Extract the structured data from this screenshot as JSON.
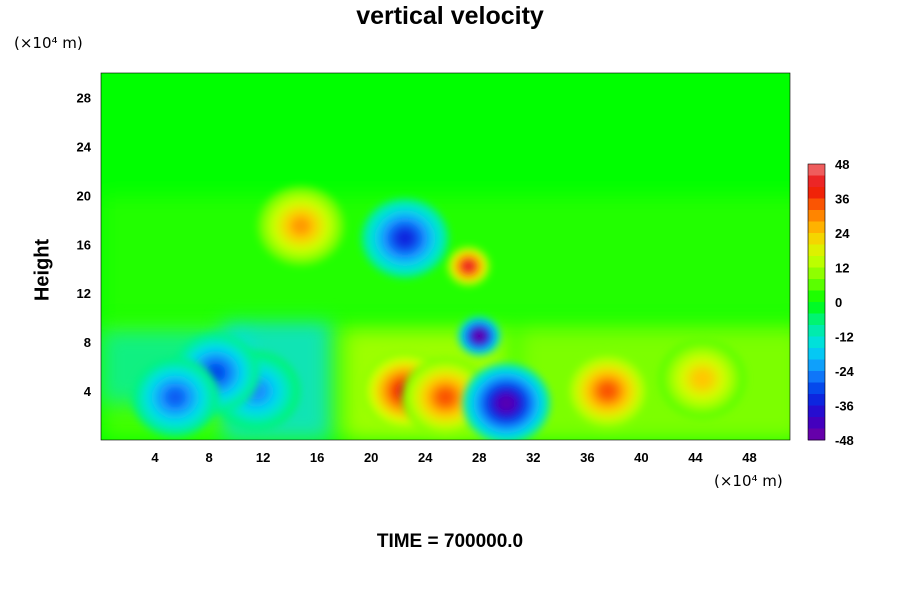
{
  "chart_data": {
    "type": "heatmap",
    "title": "vertical velocity",
    "ylabel": "Height",
    "x_unit": "(×10⁴ m)",
    "y_unit": "(×10⁴ m)",
    "annotation": "TIME = 700000.0",
    "xlim": [
      0,
      51
    ],
    "ylim": [
      0,
      30
    ],
    "x_ticks": [
      4,
      8,
      12,
      16,
      20,
      24,
      28,
      32,
      36,
      40,
      44,
      48
    ],
    "y_ticks": [
      4,
      8,
      12,
      16,
      20,
      24,
      28
    ],
    "colorbar": {
      "min": -48,
      "max": 48,
      "step": 4,
      "tick_labels": [
        48,
        36,
        24,
        12,
        0,
        -12,
        -24,
        -36,
        -48
      ]
    },
    "features": [
      {
        "x": 22.5,
        "y": 4.0,
        "value": 40
      },
      {
        "x": 25.5,
        "y": 3.5,
        "value": 34
      },
      {
        "x": 37.5,
        "y": 4.0,
        "value": 34
      },
      {
        "x": 27.2,
        "y": 14.2,
        "value": 42
      },
      {
        "x": 14.8,
        "y": 17.5,
        "value": 28
      },
      {
        "x": 44.5,
        "y": 5.0,
        "value": 24
      },
      {
        "x": 30.0,
        "y": 3.0,
        "value": -44
      },
      {
        "x": 28.0,
        "y": 8.5,
        "value": -46
      },
      {
        "x": 11.5,
        "y": 4.0,
        "value": -24
      },
      {
        "x": 8.5,
        "y": 5.5,
        "value": -30
      },
      {
        "x": 5.5,
        "y": 3.5,
        "value": -28
      },
      {
        "x": 22.5,
        "y": 16.5,
        "value": -34
      }
    ]
  }
}
